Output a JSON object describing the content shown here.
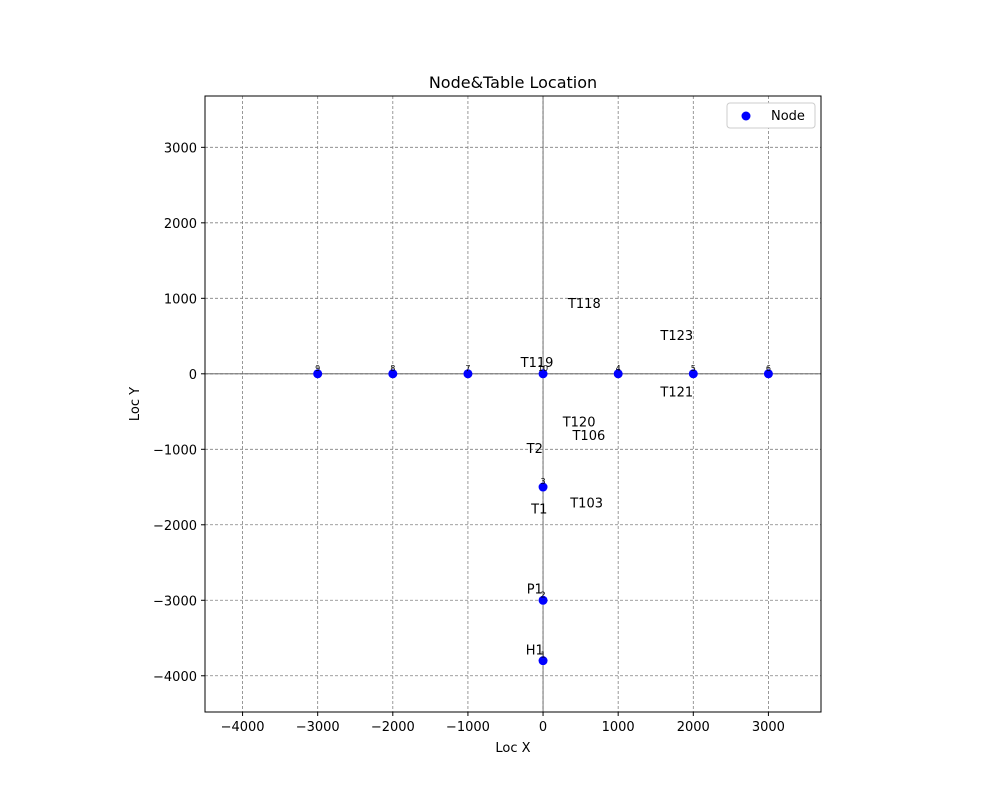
{
  "chart_data": {
    "type": "scatter",
    "title": "Node&Table Location",
    "xlabel": "Loc X",
    "ylabel": "Loc Y",
    "xlim": [
      -4500,
      3700
    ],
    "ylim": [
      -4480,
      3680
    ],
    "xticks": [
      -4000,
      -3000,
      -2000,
      -1000,
      0,
      1000,
      2000,
      3000
    ],
    "yticks": [
      -4000,
      -3000,
      -2000,
      -1000,
      0,
      1000,
      2000,
      3000
    ],
    "grid": true,
    "legend": {
      "position": "top-right",
      "entries": [
        "Node"
      ]
    },
    "series": [
      {
        "name": "Node",
        "color": "#0000ff",
        "points": [
          {
            "x": -3000,
            "y": 0,
            "label": "9"
          },
          {
            "x": -2000,
            "y": 0,
            "label": "8"
          },
          {
            "x": -1000,
            "y": 0,
            "label": "7"
          },
          {
            "x": 0,
            "y": 0,
            "label": "10"
          },
          {
            "x": 1000,
            "y": 0,
            "label": "4"
          },
          {
            "x": 2000,
            "y": 0,
            "label": "5"
          },
          {
            "x": 3000,
            "y": 0,
            "label": "6"
          },
          {
            "x": 0,
            "y": -1500,
            "label": "3"
          },
          {
            "x": 0,
            "y": -3000,
            "label": "2"
          },
          {
            "x": 0,
            "y": -3800,
            "label": "1"
          }
        ]
      }
    ],
    "annotations": [
      {
        "text": "T118",
        "x": 550,
        "y": 870
      },
      {
        "text": "T123",
        "x": 1780,
        "y": 450
      },
      {
        "text": "T119",
        "x": -80,
        "y": 90
      },
      {
        "text": "T121",
        "x": 1780,
        "y": -300
      },
      {
        "text": "T120",
        "x": 480,
        "y": -700
      },
      {
        "text": "T106",
        "x": 610,
        "y": -880
      },
      {
        "text": "T2",
        "x": -110,
        "y": -1050
      },
      {
        "text": "T103",
        "x": 580,
        "y": -1770
      },
      {
        "text": "T1",
        "x": -50,
        "y": -1850
      },
      {
        "text": "P1",
        "x": -110,
        "y": -2910
      },
      {
        "text": "H1",
        "x": -110,
        "y": -3720
      }
    ]
  }
}
